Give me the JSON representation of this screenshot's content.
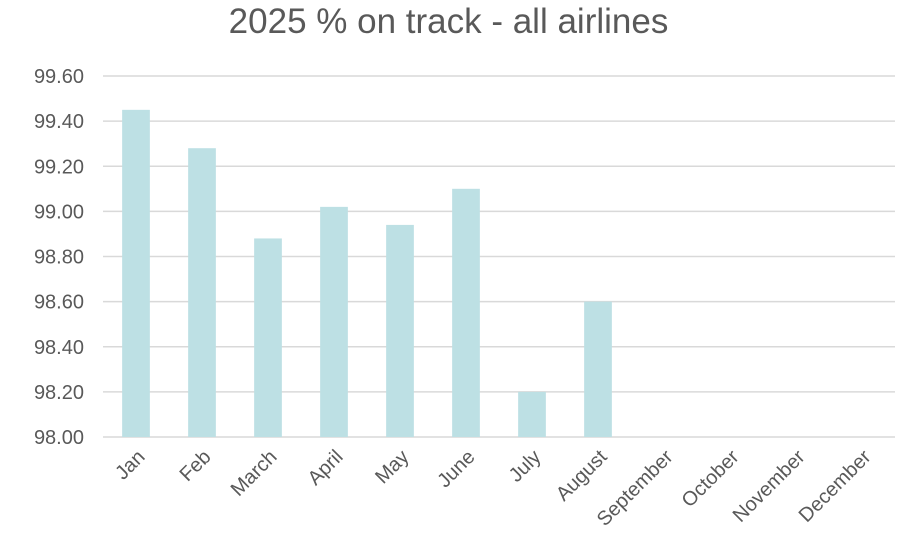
{
  "chart_data": {
    "type": "bar",
    "title": "2025 % on track - all airlines",
    "xlabel": "",
    "ylabel": "",
    "categories": [
      "Jan",
      "Feb",
      "March",
      "April",
      "May",
      "June",
      "July",
      "August",
      "September",
      "October",
      "November",
      "December"
    ],
    "values": [
      99.45,
      99.28,
      98.88,
      99.02,
      98.94,
      99.1,
      98.2,
      98.6,
      null,
      null,
      null,
      null
    ],
    "ylim": [
      98.0,
      99.6
    ],
    "yticks": [
      "98.00",
      "98.20",
      "98.40",
      "98.60",
      "98.80",
      "99.00",
      "99.20",
      "99.40",
      "99.60"
    ],
    "grid": true,
    "legend": "none",
    "colors": {
      "bar": "#bde0e4",
      "grid": "#d9d9d9",
      "text": "#595959"
    }
  }
}
